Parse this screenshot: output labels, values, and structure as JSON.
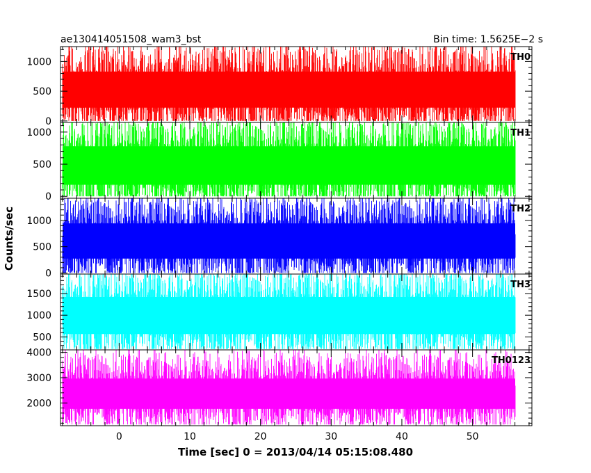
{
  "header": {
    "left": "ae130414051508_wam3_bst",
    "right": "Bin time: 1.5625E−2 s"
  },
  "xlabel": "Time [sec] 0 = 2013/04/14 05:15:08.480",
  "ylabel": "Counts/sec",
  "chart_data": {
    "type": "line",
    "title": "ae130414051508_wam3_bst",
    "subtitle": "Bin time: 1.5625E−2 s",
    "xlabel": "Time [sec] 0 = 2013/04/14 05:15:08.480",
    "ylabel": "Counts/sec",
    "xlim": [
      -8.3,
      58.4
    ],
    "x_range_data": [
      -8,
      56
    ],
    "x_ticks": [
      0,
      10,
      20,
      30,
      40,
      50
    ],
    "x_tick_labels": [
      "0",
      "10",
      "20",
      "30",
      "40",
      "50"
    ],
    "grid": false,
    "legend": "none",
    "series": [
      {
        "name": "TH0",
        "color": "#ff0000",
        "ylim": [
          -25,
          1250
        ],
        "y_ticks": [
          0,
          500,
          1000
        ],
        "y_tick_labels": [
          "0",
          "500",
          "1000"
        ],
        "typical_range": [
          130,
          940
        ],
        "min": 0,
        "max": 1300,
        "mean": 500
      },
      {
        "name": "TH1",
        "color": "#00ff00",
        "ylim": [
          -30,
          1150
        ],
        "y_ticks": [
          0,
          500,
          1000
        ],
        "y_tick_labels": [
          "0",
          "500",
          "1000"
        ],
        "typical_range": [
          80,
          880
        ],
        "min": 0,
        "max": 1150,
        "mean": 480
      },
      {
        "name": "TH2",
        "color": "#0000ff",
        "ylim": [
          -20,
          1420
        ],
        "y_ticks": [
          0,
          500,
          1000
        ],
        "y_tick_labels": [
          "0",
          "500",
          "1000"
        ],
        "typical_range": [
          160,
          1050
        ],
        "min": 0,
        "max": 1420,
        "mean": 620
      },
      {
        "name": "TH3",
        "color": "#00ffff",
        "ylim": [
          200,
          1950
        ],
        "y_ticks": [
          500,
          1000,
          1500
        ],
        "y_tick_labels": [
          "500",
          "1000",
          "1500"
        ],
        "typical_range": [
          420,
          1560
        ],
        "min": 220,
        "max": 1950,
        "mean": 1000
      },
      {
        "name": "TH0123",
        "color": "#ff00ff",
        "ylim": [
          1100,
          4100
        ],
        "y_ticks": [
          2000,
          3000,
          4000
        ],
        "y_tick_labels": [
          "2000",
          "3000",
          "4000"
        ],
        "typical_range": [
          1550,
          3150
        ],
        "min": 1150,
        "max": 4100,
        "mean": 2400
      }
    ]
  }
}
